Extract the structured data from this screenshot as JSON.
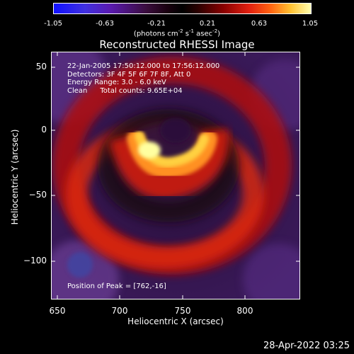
{
  "colorbar": {
    "ticks": [
      "-1.05",
      "-0.63",
      "-0.21",
      "0.21",
      "0.63",
      "1.05"
    ],
    "unit_parts": {
      "pre": "(photons cm",
      "exp1": "-2",
      "mid": " s",
      "exp2": "-1",
      "mid2": " asec",
      "exp3": "-2",
      "post": ")"
    }
  },
  "title": "Reconstructed RHESSI Image",
  "annotations": {
    "line1": "22-Jan-2005 17:50:12.000 to 17:56:12.000",
    "line2": "Detectors: 3F 4F 5F 6F 7F 8F, Att 0",
    "line3": "Energy Range: 3.0 - 6.0 keV",
    "line4_left": "Clean",
    "line4_right": "Total counts: 9.65E+04",
    "peak": "Position of Peak = [762,-16]"
  },
  "axes": {
    "xlabel": "Heliocentric X (arcsec)",
    "ylabel": "Heliocentric Y (arcsec)",
    "xticks": [
      "650",
      "700",
      "750",
      "800"
    ],
    "yticks": [
      "50",
      "0",
      "−50",
      "−100"
    ]
  },
  "timestamp": "28-Apr-2022 03:25",
  "colors": {
    "background": "#000000",
    "foreground": "#ffffff"
  }
}
